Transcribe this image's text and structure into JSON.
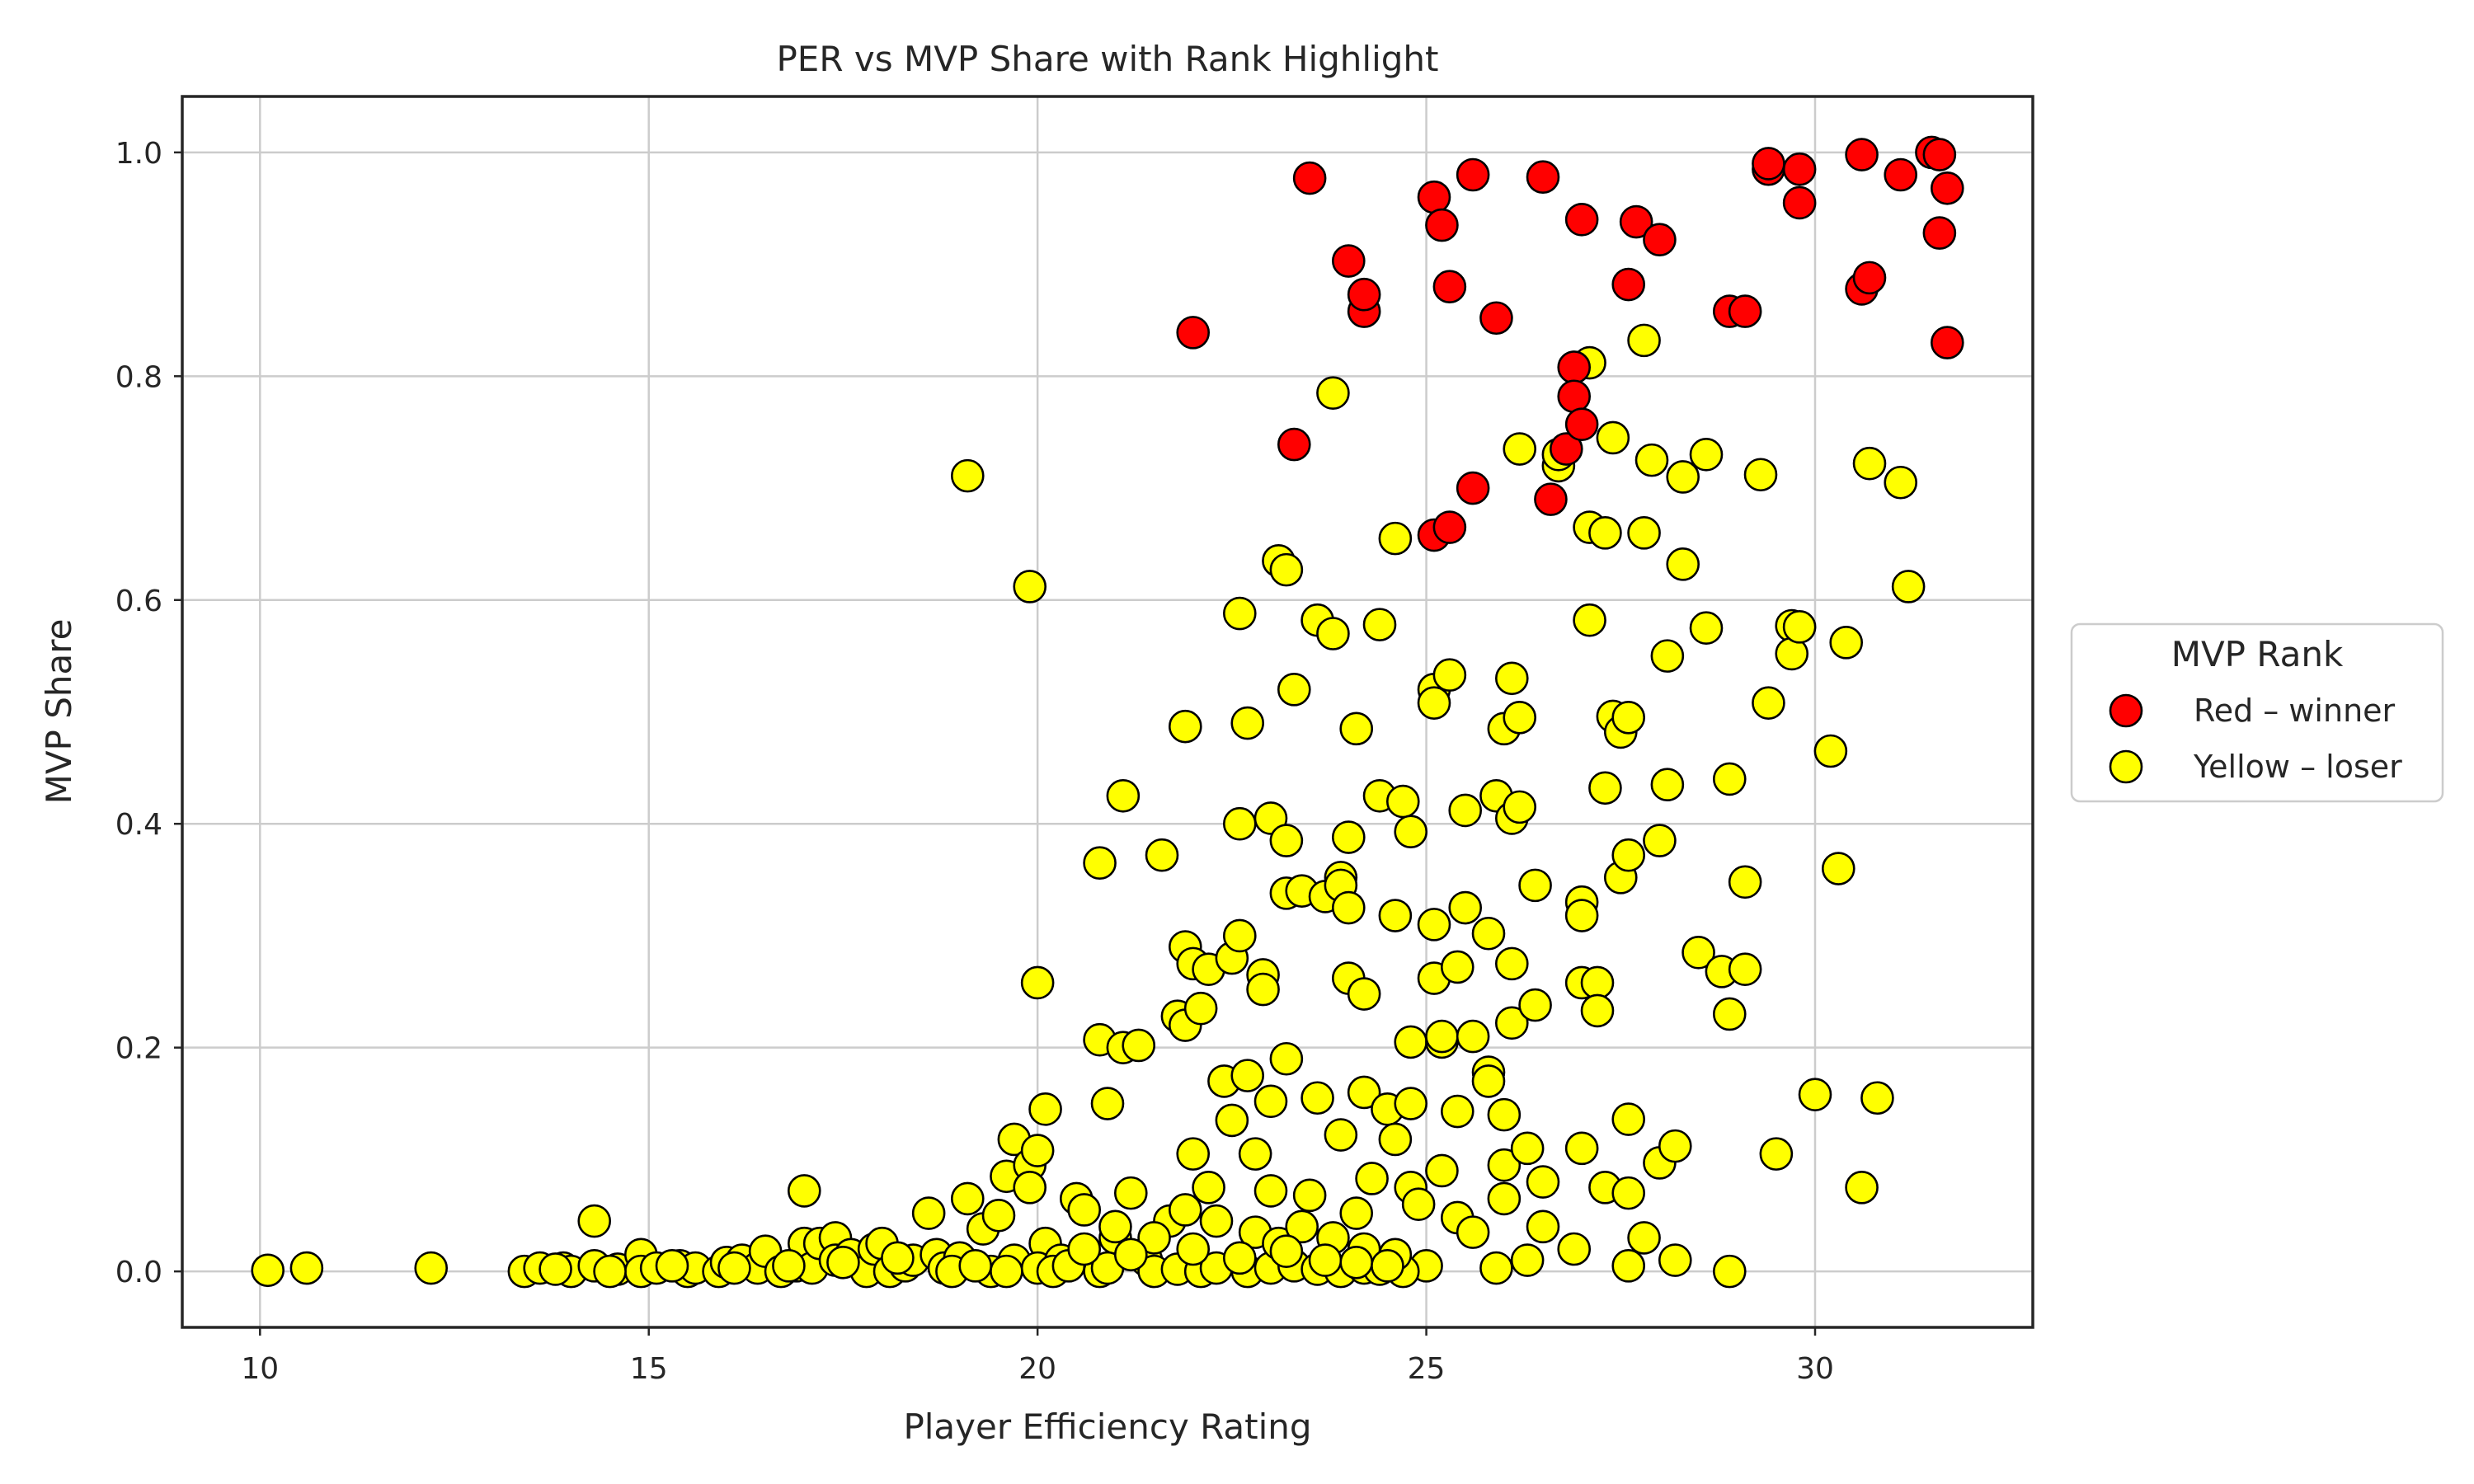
{
  "chart_data": {
    "type": "scatter",
    "title": "PER vs MVP Share with Rank Highlight",
    "xlabel": "Player Efficiency Rating",
    "ylabel": "MVP Share",
    "xlim": [
      9,
      32.8
    ],
    "ylim": [
      -0.05,
      1.05
    ],
    "xticks": [
      10,
      15,
      20,
      25,
      30
    ],
    "yticks": [
      0.0,
      0.2,
      0.4,
      0.6,
      0.8,
      1.0
    ],
    "xtick_labels": [
      "10",
      "15",
      "20",
      "25",
      "30"
    ],
    "ytick_labels": [
      "0.0",
      "0.2",
      "0.4",
      "0.6",
      "0.8",
      "1.0"
    ],
    "grid": true,
    "legend": {
      "title": "MVP Rank",
      "placement": "outside-right-center",
      "entries": [
        "Red – winner",
        "Yellow – loser"
      ]
    },
    "series": [
      {
        "name": "Red – winner",
        "color": "#ff0000",
        "points": [
          [
            22.0,
            0.839
          ],
          [
            23.3,
            0.739
          ],
          [
            23.5,
            0.977
          ],
          [
            24.0,
            0.903
          ],
          [
            24.2,
            0.858
          ],
          [
            24.2,
            0.873
          ],
          [
            25.1,
            0.96
          ],
          [
            25.2,
            0.935
          ],
          [
            25.3,
            0.88
          ],
          [
            25.6,
            0.98
          ],
          [
            25.6,
            0.7
          ],
          [
            25.9,
            0.852
          ],
          [
            25.1,
            0.658
          ],
          [
            25.3,
            0.665
          ],
          [
            26.5,
            0.978
          ],
          [
            26.6,
            0.69
          ],
          [
            26.8,
            0.735
          ],
          [
            26.9,
            0.808
          ],
          [
            26.9,
            0.782
          ],
          [
            27.0,
            0.757
          ],
          [
            27.0,
            0.94
          ],
          [
            27.6,
            0.882
          ],
          [
            27.7,
            0.938
          ],
          [
            28.0,
            0.922
          ],
          [
            28.9,
            0.858
          ],
          [
            29.1,
            0.858
          ],
          [
            29.4,
            0.985
          ],
          [
            29.4,
            0.99
          ],
          [
            29.8,
            0.985
          ],
          [
            29.8,
            0.955
          ],
          [
            30.6,
            0.998
          ],
          [
            30.6,
            0.878
          ],
          [
            30.7,
            0.888
          ],
          [
            31.1,
            0.98
          ],
          [
            31.5,
            1.0
          ],
          [
            31.6,
            0.998
          ],
          [
            31.6,
            0.928
          ],
          [
            31.7,
            0.968
          ],
          [
            31.7,
            0.83
          ]
        ]
      },
      {
        "name": "Yellow – loser",
        "color": "#ffff00",
        "points": [
          [
            10.1,
            0.001
          ],
          [
            10.6,
            0.003
          ],
          [
            12.2,
            0.003
          ],
          [
            13.4,
            0.0
          ],
          [
            13.6,
            0.003
          ],
          [
            13.9,
            0.003
          ],
          [
            14.0,
            0.0
          ],
          [
            14.3,
            0.045
          ],
          [
            14.3,
            0.005
          ],
          [
            14.6,
            0.002
          ],
          [
            14.9,
            0.015
          ],
          [
            14.9,
            0.0
          ],
          [
            15.1,
            0.003
          ],
          [
            15.4,
            0.005
          ],
          [
            15.5,
            0.0
          ],
          [
            15.6,
            0.003
          ],
          [
            15.9,
            0.0
          ],
          [
            16.0,
            0.008
          ],
          [
            16.2,
            0.01
          ],
          [
            16.4,
            0.003
          ],
          [
            16.5,
            0.018
          ],
          [
            16.7,
            0.0
          ],
          [
            16.9,
            0.005
          ],
          [
            17.0,
            0.072
          ],
          [
            17.0,
            0.025
          ],
          [
            17.1,
            0.003
          ],
          [
            17.2,
            0.025
          ],
          [
            17.4,
            0.03
          ],
          [
            17.4,
            0.01
          ],
          [
            17.6,
            0.015
          ],
          [
            17.8,
            0.0
          ],
          [
            17.9,
            0.02
          ],
          [
            18.0,
            0.025
          ],
          [
            18.1,
            0.0
          ],
          [
            18.3,
            0.005
          ],
          [
            18.4,
            0.01
          ],
          [
            18.6,
            0.052
          ],
          [
            18.7,
            0.015
          ],
          [
            18.8,
            0.003
          ],
          [
            19.0,
            0.012
          ],
          [
            19.1,
            0.711
          ],
          [
            19.1,
            0.065
          ],
          [
            19.3,
            0.038
          ],
          [
            19.4,
            0.0
          ],
          [
            19.5,
            0.05
          ],
          [
            19.6,
            0.085
          ],
          [
            19.7,
            0.118
          ],
          [
            19.7,
            0.01
          ],
          [
            19.9,
            0.612
          ],
          [
            19.9,
            0.095
          ],
          [
            19.9,
            0.075
          ],
          [
            20.0,
            0.258
          ],
          [
            20.0,
            0.108
          ],
          [
            20.1,
            0.145
          ],
          [
            20.1,
            0.025
          ],
          [
            20.0,
            0.003
          ],
          [
            20.3,
            0.01
          ],
          [
            20.5,
            0.065
          ],
          [
            20.6,
            0.055
          ],
          [
            20.8,
            0.365
          ],
          [
            20.8,
            0.207
          ],
          [
            20.8,
            0.0
          ],
          [
            20.9,
            0.15
          ],
          [
            21.0,
            0.03
          ],
          [
            21.1,
            0.425
          ],
          [
            21.1,
            0.2
          ],
          [
            21.2,
            0.07
          ],
          [
            21.3,
            0.202
          ],
          [
            21.4,
            0.01
          ],
          [
            21.6,
            0.372
          ],
          [
            21.7,
            0.045
          ],
          [
            21.8,
            0.228
          ],
          [
            21.9,
            0.29
          ],
          [
            21.9,
            0.22
          ],
          [
            21.9,
            0.487
          ],
          [
            22.0,
            0.275
          ],
          [
            22.0,
            0.105
          ],
          [
            22.1,
            0.235
          ],
          [
            22.2,
            0.27
          ],
          [
            22.2,
            0.075
          ],
          [
            22.4,
            0.17
          ],
          [
            22.5,
            0.135
          ],
          [
            22.5,
            0.28
          ],
          [
            22.6,
            0.588
          ],
          [
            22.6,
            0.3
          ],
          [
            22.6,
            0.4
          ],
          [
            22.7,
            0.49
          ],
          [
            22.7,
            0.175
          ],
          [
            22.8,
            0.105
          ],
          [
            22.9,
            0.265
          ],
          [
            22.9,
            0.252
          ],
          [
            23.0,
            0.405
          ],
          [
            23.0,
            0.152
          ],
          [
            23.0,
            0.072
          ],
          [
            23.1,
            0.635
          ],
          [
            23.2,
            0.627
          ],
          [
            23.2,
            0.385
          ],
          [
            23.2,
            0.19
          ],
          [
            23.2,
            0.338
          ],
          [
            23.3,
            0.52
          ],
          [
            23.4,
            0.34
          ],
          [
            23.5,
            0.068
          ],
          [
            23.6,
            0.582
          ],
          [
            23.6,
            0.155
          ],
          [
            23.7,
            0.335
          ],
          [
            23.8,
            0.57
          ],
          [
            23.8,
            0.785
          ],
          [
            23.9,
            0.352
          ],
          [
            23.9,
            0.345
          ],
          [
            23.9,
            0.122
          ],
          [
            24.0,
            0.388
          ],
          [
            24.0,
            0.325
          ],
          [
            24.0,
            0.262
          ],
          [
            24.1,
            0.485
          ],
          [
            24.1,
            0.052
          ],
          [
            24.2,
            0.248
          ],
          [
            24.2,
            0.16
          ],
          [
            24.3,
            0.083
          ],
          [
            24.4,
            0.578
          ],
          [
            24.4,
            0.425
          ],
          [
            24.5,
            0.145
          ],
          [
            24.6,
            0.655
          ],
          [
            24.6,
            0.318
          ],
          [
            24.6,
            0.118
          ],
          [
            24.7,
            0.42
          ],
          [
            24.8,
            0.393
          ],
          [
            24.8,
            0.205
          ],
          [
            24.8,
            0.15
          ],
          [
            24.8,
            0.075
          ],
          [
            25.0,
            0.005
          ],
          [
            25.1,
            0.52
          ],
          [
            25.1,
            0.508
          ],
          [
            25.1,
            0.31
          ],
          [
            25.1,
            0.262
          ],
          [
            25.2,
            0.205
          ],
          [
            25.2,
            0.09
          ],
          [
            25.2,
            0.21
          ],
          [
            25.3,
            0.533
          ],
          [
            25.4,
            0.272
          ],
          [
            25.4,
            0.143
          ],
          [
            25.4,
            0.048
          ],
          [
            25.5,
            0.412
          ],
          [
            25.5,
            0.325
          ],
          [
            25.6,
            0.21
          ],
          [
            25.8,
            0.302
          ],
          [
            25.8,
            0.178
          ],
          [
            25.8,
            0.17
          ],
          [
            25.9,
            0.425
          ],
          [
            25.9,
            0.003
          ],
          [
            26.0,
            0.485
          ],
          [
            26.0,
            0.14
          ],
          [
            26.0,
            0.095
          ],
          [
            26.1,
            0.53
          ],
          [
            26.1,
            0.405
          ],
          [
            26.1,
            0.275
          ],
          [
            26.1,
            0.222
          ],
          [
            26.2,
            0.735
          ],
          [
            26.2,
            0.495
          ],
          [
            26.2,
            0.415
          ],
          [
            26.3,
            0.11
          ],
          [
            26.4,
            0.345
          ],
          [
            26.4,
            0.238
          ],
          [
            26.5,
            0.08
          ],
          [
            26.5,
            0.04
          ],
          [
            26.7,
            0.72
          ],
          [
            26.7,
            0.73
          ],
          [
            26.9,
            0.02
          ],
          [
            27.0,
            0.33
          ],
          [
            27.0,
            0.318
          ],
          [
            27.0,
            0.258
          ],
          [
            27.0,
            0.11
          ],
          [
            27.1,
            0.665
          ],
          [
            27.1,
            0.582
          ],
          [
            27.1,
            0.812
          ],
          [
            27.2,
            0.258
          ],
          [
            27.2,
            0.233
          ],
          [
            27.3,
            0.66
          ],
          [
            27.3,
            0.432
          ],
          [
            27.3,
            0.075
          ],
          [
            27.4,
            0.745
          ],
          [
            27.4,
            0.496
          ],
          [
            27.5,
            0.482
          ],
          [
            27.5,
            0.352
          ],
          [
            27.6,
            0.372
          ],
          [
            27.6,
            0.495
          ],
          [
            27.6,
            0.136
          ],
          [
            27.6,
            0.07
          ],
          [
            27.6,
            0.005
          ],
          [
            27.8,
            0.832
          ],
          [
            27.8,
            0.66
          ],
          [
            27.8,
            0.03
          ],
          [
            27.9,
            0.725
          ],
          [
            28.0,
            0.385
          ],
          [
            28.0,
            0.097
          ],
          [
            28.1,
            0.55
          ],
          [
            28.1,
            0.435
          ],
          [
            28.2,
            0.112
          ],
          [
            28.2,
            0.01
          ],
          [
            28.3,
            0.71
          ],
          [
            28.3,
            0.632
          ],
          [
            28.5,
            0.285
          ],
          [
            28.6,
            0.73
          ],
          [
            28.6,
            0.575
          ],
          [
            28.8,
            0.268
          ],
          [
            28.9,
            0.44
          ],
          [
            28.9,
            0.23
          ],
          [
            28.9,
            0.0
          ],
          [
            29.1,
            0.348
          ],
          [
            29.1,
            0.27
          ],
          [
            29.3,
            0.712
          ],
          [
            29.4,
            0.508
          ],
          [
            29.5,
            0.105
          ],
          [
            29.7,
            0.577
          ],
          [
            29.7,
            0.552
          ],
          [
            29.8,
            0.576
          ],
          [
            30.0,
            0.158
          ],
          [
            30.2,
            0.465
          ],
          [
            30.3,
            0.36
          ],
          [
            30.4,
            0.562
          ],
          [
            30.6,
            0.075
          ],
          [
            30.7,
            0.722
          ],
          [
            30.8,
            0.155
          ],
          [
            31.1,
            0.705
          ],
          [
            31.2,
            0.612
          ],
          [
            18.9,
            0.0
          ],
          [
            19.2,
            0.005
          ],
          [
            19.6,
            0.0
          ],
          [
            20.2,
            0.0
          ],
          [
            20.4,
            0.005
          ],
          [
            20.9,
            0.003
          ],
          [
            21.5,
            0.0
          ],
          [
            21.8,
            0.002
          ],
          [
            22.1,
            0.0
          ],
          [
            22.3,
            0.003
          ],
          [
            22.7,
            0.0
          ],
          [
            23.0,
            0.003
          ],
          [
            23.3,
            0.005
          ],
          [
            23.6,
            0.002
          ],
          [
            23.9,
            0.0
          ],
          [
            24.2,
            0.003
          ],
          [
            24.4,
            0.002
          ],
          [
            24.7,
            0.0
          ],
          [
            21.0,
            0.04
          ],
          [
            21.5,
            0.03
          ],
          [
            21.9,
            0.055
          ],
          [
            22.3,
            0.045
          ],
          [
            22.8,
            0.035
          ],
          [
            23.1,
            0.025
          ],
          [
            23.4,
            0.04
          ],
          [
            23.8,
            0.03
          ],
          [
            24.2,
            0.02
          ],
          [
            24.6,
            0.015
          ],
          [
            24.9,
            0.06
          ],
          [
            25.6,
            0.035
          ],
          [
            26.0,
            0.065
          ],
          [
            26.3,
            0.01
          ],
          [
            20.6,
            0.02
          ],
          [
            21.2,
            0.015
          ],
          [
            22.0,
            0.02
          ],
          [
            22.6,
            0.012
          ],
          [
            23.2,
            0.018
          ],
          [
            23.7,
            0.01
          ],
          [
            24.1,
            0.008
          ],
          [
            24.5,
            0.005
          ],
          [
            18.2,
            0.012
          ],
          [
            17.5,
            0.008
          ],
          [
            16.8,
            0.005
          ],
          [
            16.1,
            0.003
          ],
          [
            15.3,
            0.005
          ],
          [
            14.5,
            0.0
          ],
          [
            13.8,
            0.002
          ]
        ]
      }
    ]
  }
}
